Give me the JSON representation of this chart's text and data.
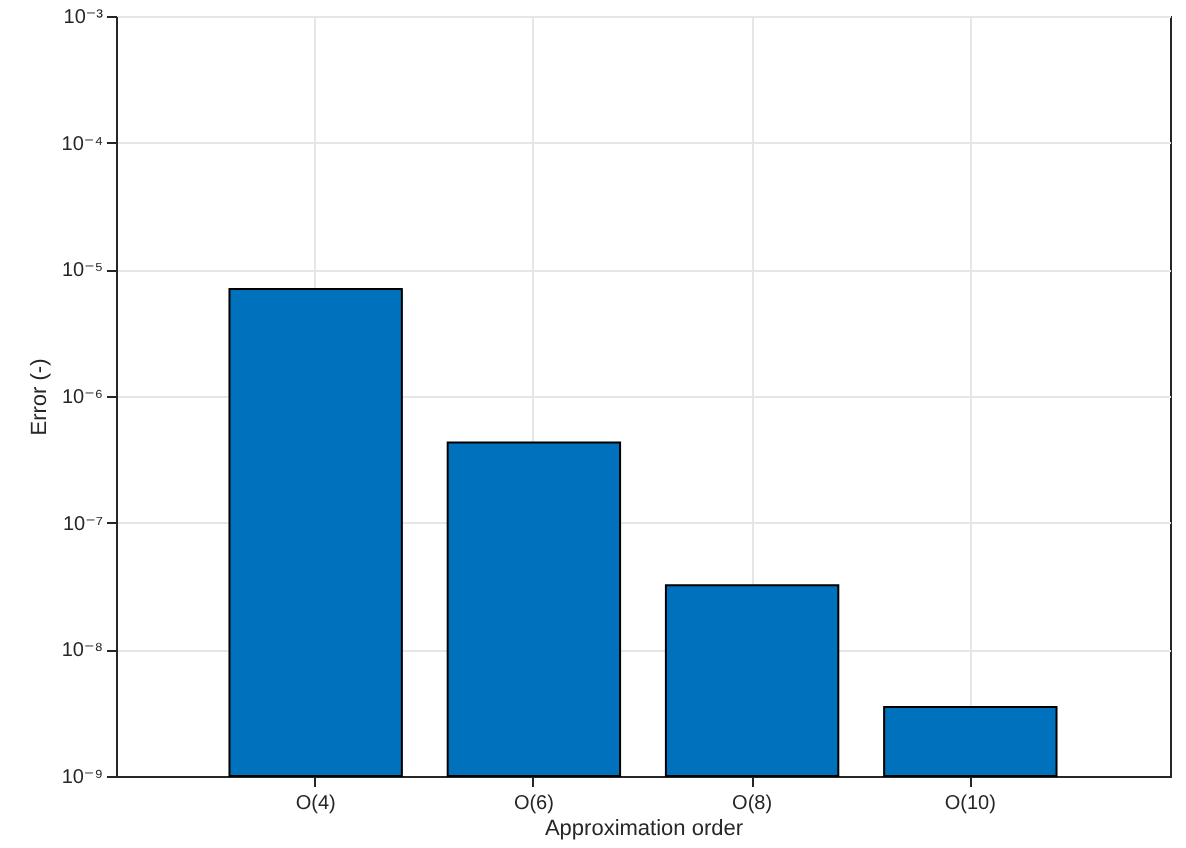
{
  "chart_data": {
    "type": "bar",
    "xlabel": "Approximation order",
    "ylabel": "Error (-)",
    "categories": [
      "O(4)",
      "O(6)",
      "O(8)",
      "O(10)"
    ],
    "values": [
      7e-06,
      4.3e-07,
      3.2e-08,
      3.5e-09
    ],
    "color": "#0072bd",
    "log": "y",
    "ylim": [
      1e-09,
      0.001
    ],
    "yticks": [
      {
        "value": 1e-09,
        "label": "10⁻⁹"
      },
      {
        "value": 1e-08,
        "label": "10⁻⁸"
      },
      {
        "value": 1e-07,
        "label": "10⁻⁷"
      },
      {
        "value": 1e-06,
        "label": "10⁻⁶"
      },
      {
        "value": 1e-05,
        "label": "10⁻⁵"
      },
      {
        "value": 0.0001,
        "label": "10⁻⁴"
      },
      {
        "value": 0.001,
        "label": "10⁻³"
      }
    ],
    "grid": true
  }
}
